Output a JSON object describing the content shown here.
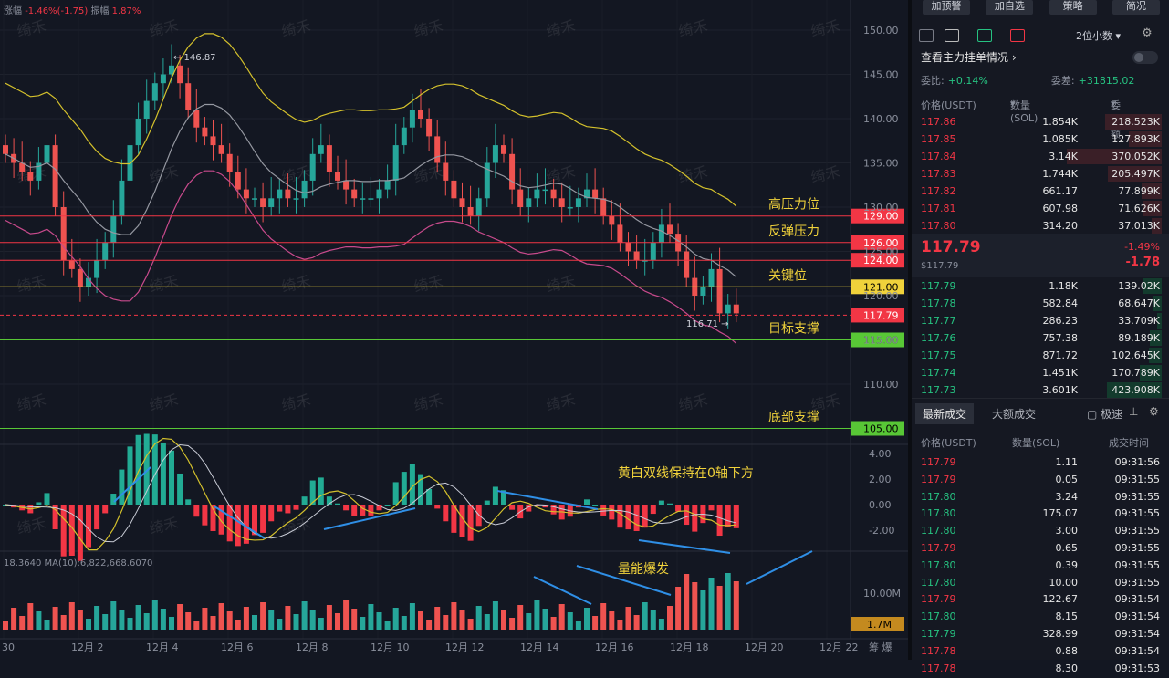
{
  "top_stats": {
    "chg_label": "涨幅",
    "chg_value": "-1.46%(-1.75)",
    "amp_label": "振幅",
    "amp_value": "1.87%"
  },
  "watermark": "绮禾",
  "chart_data": {
    "type": "candlestick",
    "x_tick_labels": [
      "30",
      "12月 2",
      "12月 4",
      "12月 6",
      "12月 8",
      "12月 10",
      "12月 12",
      "12月 14",
      "12月 16",
      "12月 18",
      "12月 20",
      "12月 22"
    ],
    "x_axis_suffix": "筹 爆",
    "price_ticks": [
      150,
      145,
      140,
      135,
      130,
      125,
      120,
      115,
      110
    ],
    "price_tick_labels": [
      "150.00",
      "145.00",
      "140.00",
      "135.00",
      "130.00",
      "125.00",
      "120.00",
      "115.00",
      "110.00"
    ],
    "macd_ticks": [
      4,
      2,
      0,
      -2
    ],
    "macd_tick_labels": [
      "4.00",
      "2.00",
      "0.00",
      "-2.00"
    ],
    "volume_tick_label": "10.00M",
    "volume_current_label": "1.7M",
    "ma_label": "18.3640  MA(10):6,822,668.6070",
    "high_marker": "← 146.87",
    "low_marker": "116.71 →",
    "levels": [
      {
        "price": 129,
        "label": "129.00",
        "name": "高压力位",
        "color": "#f23645"
      },
      {
        "price": 126,
        "label": "126.00",
        "name": "反弹压力",
        "color": "#f23645"
      },
      {
        "price": 124,
        "label": "124.00",
        "name": "",
        "color": "#f23645"
      },
      {
        "price": 121,
        "label": "121.00",
        "name": "关键位",
        "color": "#f0d23b"
      },
      {
        "price": 117.79,
        "label": "117.79",
        "name": "",
        "color": "#f23645"
      },
      {
        "price": 115,
        "label": "115.00",
        "name": "目标支撑",
        "color": "#58c736"
      },
      {
        "price": 105,
        "label": "105.00",
        "name": "底部支撑",
        "color": "#58c736"
      }
    ],
    "annotations": {
      "macd": "黄白双线保持在0轴下方",
      "volume": "量能爆发"
    },
    "closes": [
      136,
      135,
      134,
      133,
      135,
      137,
      130,
      124,
      123,
      121,
      122,
      124,
      126,
      129,
      133,
      137,
      140,
      142,
      144,
      145,
      146,
      144,
      141,
      139,
      138,
      137,
      136,
      134,
      132,
      131,
      131,
      130,
      131,
      132,
      131,
      131,
      133,
      136,
      137,
      134,
      133,
      132,
      131,
      131,
      131,
      132,
      133,
      137,
      139,
      141,
      140,
      138,
      135,
      133,
      131,
      130,
      129,
      131,
      135,
      137,
      136,
      132,
      130,
      131,
      132,
      132,
      131,
      130,
      130,
      131,
      132,
      131,
      129,
      128,
      126,
      125,
      124,
      124,
      126,
      128,
      127,
      125,
      122,
      120,
      121,
      123,
      118,
      119,
      118
    ]
  },
  "panel": {
    "buttons": [
      "加预警",
      "加自选",
      "策略",
      "简况"
    ],
    "precision": "2位小数",
    "title": "查看主力挂单情况",
    "wb_label": "委比:",
    "wb_value": "+0.14%",
    "wc_label": "委差:",
    "wc_value": "+31815.02",
    "ob_headers": [
      "价格(USDT)",
      "数量 (SOL)",
      "委托额"
    ],
    "asks": [
      {
        "price": "117.86",
        "qty": "1.854K",
        "amt": "218.523K",
        "depth": 0.52
      },
      {
        "price": "117.85",
        "qty": "1.085K",
        "amt": "127.893K",
        "depth": 0.3
      },
      {
        "price": "117.84",
        "qty": "3.14K",
        "amt": "370.052K",
        "depth": 0.87
      },
      {
        "price": "117.83",
        "qty": "1.744K",
        "amt": "205.497K",
        "depth": 0.49
      },
      {
        "price": "117.82",
        "qty": "661.17",
        "amt": "77.899K",
        "depth": 0.18
      },
      {
        "price": "117.81",
        "qty": "607.98",
        "amt": "71.626K",
        "depth": 0.17
      },
      {
        "price": "117.80",
        "qty": "314.20",
        "amt": "37.013K",
        "depth": 0.09
      }
    ],
    "last_price": "117.79",
    "last_price_usd": "$117.79",
    "change_pct": "-1.49%",
    "change_abs": "-1.78",
    "bids": [
      {
        "price": "117.79",
        "qty": "1.18K",
        "amt": "139.02K",
        "depth": 0.33
      },
      {
        "price": "117.78",
        "qty": "582.84",
        "amt": "68.647K",
        "depth": 0.16
      },
      {
        "price": "117.77",
        "qty": "286.23",
        "amt": "33.709K",
        "depth": 0.08
      },
      {
        "price": "117.76",
        "qty": "757.38",
        "amt": "89.189K",
        "depth": 0.21
      },
      {
        "price": "117.75",
        "qty": "871.72",
        "amt": "102.645K",
        "depth": 0.24
      },
      {
        "price": "117.74",
        "qty": "1.451K",
        "amt": "170.789K",
        "depth": 0.4
      },
      {
        "price": "117.73",
        "qty": "3.601K",
        "amt": "423.908K",
        "depth": 1.0
      }
    ],
    "trade_tabs": [
      "最新成交",
      "大额成交",
      "极速"
    ],
    "trade_headers": [
      "价格(USDT)",
      "数量(SOL)",
      "成交时间"
    ],
    "trades": [
      {
        "price": "117.79",
        "qty": "1.11",
        "time": "09:31:56",
        "side": "sell"
      },
      {
        "price": "117.79",
        "qty": "0.05",
        "time": "09:31:55",
        "side": "sell"
      },
      {
        "price": "117.80",
        "qty": "3.24",
        "time": "09:31:55",
        "side": "buy"
      },
      {
        "price": "117.80",
        "qty": "175.07",
        "time": "09:31:55",
        "side": "buy"
      },
      {
        "price": "117.80",
        "qty": "3.00",
        "time": "09:31:55",
        "side": "buy"
      },
      {
        "price": "117.79",
        "qty": "0.65",
        "time": "09:31:55",
        "side": "sell"
      },
      {
        "price": "117.80",
        "qty": "0.39",
        "time": "09:31:55",
        "side": "buy"
      },
      {
        "price": "117.80",
        "qty": "10.00",
        "time": "09:31:55",
        "side": "buy"
      },
      {
        "price": "117.79",
        "qty": "122.67",
        "time": "09:31:54",
        "side": "sell"
      },
      {
        "price": "117.80",
        "qty": "8.15",
        "time": "09:31:54",
        "side": "buy"
      },
      {
        "price": "117.79",
        "qty": "328.99",
        "time": "09:31:54",
        "side": "buy"
      },
      {
        "price": "117.78",
        "qty": "0.88",
        "time": "09:31:54",
        "side": "sell"
      },
      {
        "price": "117.78",
        "qty": "8.30",
        "time": "09:31:53",
        "side": "sell"
      }
    ]
  }
}
